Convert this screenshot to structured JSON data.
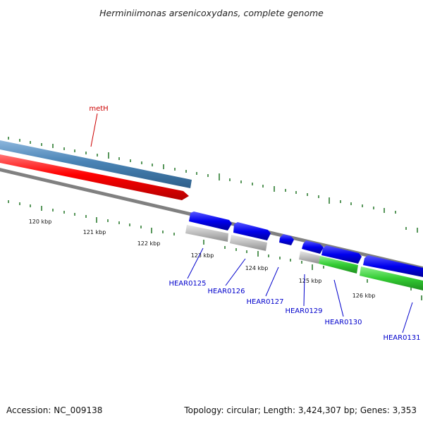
{
  "title": "Herminiimonas arsenicoxydans, complete genome",
  "footer": {
    "accession": "Accession: NC_009138",
    "summary": "Topology: circular; Length: 3,424,307 bp; Genes: 3,353"
  },
  "kbp_labels": [
    "120 kbp",
    "121 kbp",
    "122 kbp",
    "123 kbp",
    "124 kbp",
    "125 kbp",
    "126 kbp"
  ],
  "feature_label": "metH",
  "gene_labels": [
    "HEAR0125",
    "HEAR0126",
    "HEAR0127",
    "HEAR0129",
    "HEAR0130",
    "HEAR0131"
  ],
  "colors": {
    "backbone": "#808080",
    "blue_track": "#4a84b6",
    "red_track": "#ff0000",
    "forward_gene": "#0000ee",
    "reverse_gene": "#b8b8b8",
    "green_gene": "#33cc33",
    "tick": "#2e7d32",
    "gene_label": "#0000cc",
    "feature_label": "#cc0000"
  }
}
